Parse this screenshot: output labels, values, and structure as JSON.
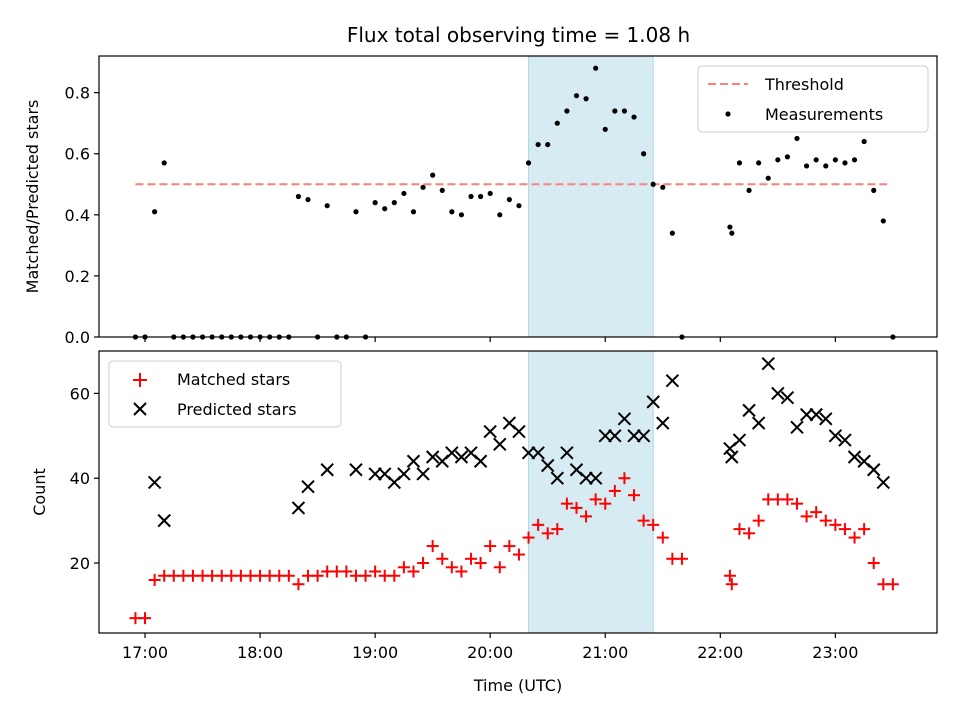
{
  "chart_data": [
    {
      "type": "scatter",
      "title": "Flux total observing time = 1.08 h",
      "xlabel": "",
      "ylabel": "Matched/Predicted stars",
      "ylim": [
        0.0,
        0.92
      ],
      "yticks": [
        "0.0",
        "0.2",
        "0.4",
        "0.6",
        "0.8"
      ],
      "xlim": [
        "16:36",
        "23:53"
      ],
      "highlight": {
        "from": "20:20",
        "to": "21:25",
        "color": "#add8e6"
      },
      "legend": {
        "position": "top-right"
      },
      "threshold": {
        "name": "Threshold",
        "value": 0.5,
        "x_from": "16:55",
        "x_to": "23:27",
        "color": "#ff7f7f"
      },
      "series": [
        {
          "name": "Measurements",
          "color": "#000000",
          "marker": "dot",
          "points": [
            [
              "16:55",
              0.0
            ],
            [
              "17:00",
              0.0
            ],
            [
              "17:05",
              0.41
            ],
            [
              "17:10",
              0.57
            ],
            [
              "17:15",
              0.0
            ],
            [
              "17:20",
              0.0
            ],
            [
              "17:25",
              0.0
            ],
            [
              "17:30",
              0.0
            ],
            [
              "17:35",
              0.0
            ],
            [
              "17:40",
              0.0
            ],
            [
              "17:45",
              0.0
            ],
            [
              "17:50",
              0.0
            ],
            [
              "17:55",
              0.0
            ],
            [
              "18:00",
              0.0
            ],
            [
              "18:05",
              0.0
            ],
            [
              "18:10",
              0.0
            ],
            [
              "18:15",
              0.0
            ],
            [
              "18:20",
              0.46
            ],
            [
              "18:25",
              0.45
            ],
            [
              "18:30",
              0.0
            ],
            [
              "18:35",
              0.43
            ],
            [
              "18:40",
              0.0
            ],
            [
              "18:45",
              0.0
            ],
            [
              "18:50",
              0.41
            ],
            [
              "18:55",
              0.0
            ],
            [
              "19:00",
              0.44
            ],
            [
              "19:05",
              0.42
            ],
            [
              "19:10",
              0.44
            ],
            [
              "19:15",
              0.47
            ],
            [
              "19:20",
              0.41
            ],
            [
              "19:25",
              0.49
            ],
            [
              "19:30",
              0.53
            ],
            [
              "19:35",
              0.48
            ],
            [
              "19:40",
              0.41
            ],
            [
              "19:45",
              0.4
            ],
            [
              "19:50",
              0.46
            ],
            [
              "19:55",
              0.46
            ],
            [
              "20:00",
              0.47
            ],
            [
              "20:05",
              0.4
            ],
            [
              "20:10",
              0.45
            ],
            [
              "20:15",
              0.43
            ],
            [
              "20:20",
              0.57
            ],
            [
              "20:25",
              0.63
            ],
            [
              "20:30",
              0.63
            ],
            [
              "20:35",
              0.7
            ],
            [
              "20:40",
              0.74
            ],
            [
              "20:45",
              0.79
            ],
            [
              "20:50",
              0.78
            ],
            [
              "20:55",
              0.88
            ],
            [
              "21:00",
              0.68
            ],
            [
              "21:05",
              0.74
            ],
            [
              "21:10",
              0.74
            ],
            [
              "21:15",
              0.72
            ],
            [
              "21:20",
              0.6
            ],
            [
              "21:25",
              0.5
            ],
            [
              "21:30",
              0.49
            ],
            [
              "21:35",
              0.34
            ],
            [
              "21:40",
              0.0
            ],
            [
              "22:05",
              0.36
            ],
            [
              "22:06",
              0.34
            ],
            [
              "22:10",
              0.57
            ],
            [
              "22:15",
              0.48
            ],
            [
              "22:20",
              0.57
            ],
            [
              "22:25",
              0.52
            ],
            [
              "22:30",
              0.58
            ],
            [
              "22:35",
              0.59
            ],
            [
              "22:40",
              0.65
            ],
            [
              "22:45",
              0.56
            ],
            [
              "22:50",
              0.58
            ],
            [
              "22:55",
              0.56
            ],
            [
              "23:00",
              0.58
            ],
            [
              "23:05",
              0.57
            ],
            [
              "23:10",
              0.58
            ],
            [
              "23:15",
              0.64
            ],
            [
              "23:20",
              0.48
            ],
            [
              "23:25",
              0.38
            ],
            [
              "23:30",
              0.0
            ]
          ]
        }
      ]
    },
    {
      "type": "scatter",
      "title": "",
      "xlabel": "Time (UTC)",
      "ylabel": "Count",
      "ylim": [
        3.5,
        70
      ],
      "yticks": [
        "20",
        "40",
        "60"
      ],
      "xticks": [
        "17:00",
        "18:00",
        "19:00",
        "20:00",
        "21:00",
        "22:00",
        "23:00"
      ],
      "xlim": [
        "16:36",
        "23:53"
      ],
      "highlight": {
        "from": "20:20",
        "to": "21:25",
        "color": "#add8e6"
      },
      "legend": {
        "position": "top-left"
      },
      "series": [
        {
          "name": "Matched stars",
          "color": "#ff0000",
          "marker": "plus",
          "points": [
            [
              "16:55",
              7
            ],
            [
              "17:00",
              7
            ],
            [
              "17:05",
              16
            ],
            [
              "17:10",
              17
            ],
            [
              "17:15",
              17
            ],
            [
              "17:20",
              17
            ],
            [
              "17:25",
              17
            ],
            [
              "17:30",
              17
            ],
            [
              "17:35",
              17
            ],
            [
              "17:40",
              17
            ],
            [
              "17:45",
              17
            ],
            [
              "17:50",
              17
            ],
            [
              "17:55",
              17
            ],
            [
              "18:00",
              17
            ],
            [
              "18:05",
              17
            ],
            [
              "18:10",
              17
            ],
            [
              "18:15",
              17
            ],
            [
              "18:20",
              15
            ],
            [
              "18:25",
              17
            ],
            [
              "18:30",
              17
            ],
            [
              "18:35",
              18
            ],
            [
              "18:40",
              18
            ],
            [
              "18:45",
              18
            ],
            [
              "18:50",
              17
            ],
            [
              "18:55",
              17
            ],
            [
              "19:00",
              18
            ],
            [
              "19:05",
              17
            ],
            [
              "19:10",
              17
            ],
            [
              "19:15",
              19
            ],
            [
              "19:20",
              18
            ],
            [
              "19:25",
              20
            ],
            [
              "19:30",
              24
            ],
            [
              "19:35",
              21
            ],
            [
              "19:40",
              19
            ],
            [
              "19:45",
              18
            ],
            [
              "19:50",
              21
            ],
            [
              "19:55",
              20
            ],
            [
              "20:00",
              24
            ],
            [
              "20:05",
              19
            ],
            [
              "20:10",
              24
            ],
            [
              "20:15",
              22
            ],
            [
              "20:20",
              26
            ],
            [
              "20:25",
              29
            ],
            [
              "20:30",
              27
            ],
            [
              "20:35",
              28
            ],
            [
              "20:40",
              34
            ],
            [
              "20:45",
              33
            ],
            [
              "20:50",
              31
            ],
            [
              "20:55",
              35
            ],
            [
              "21:00",
              34
            ],
            [
              "21:05",
              37
            ],
            [
              "21:10",
              40
            ],
            [
              "21:15",
              36
            ],
            [
              "21:20",
              30
            ],
            [
              "21:25",
              29
            ],
            [
              "21:30",
              26
            ],
            [
              "21:35",
              21
            ],
            [
              "21:40",
              21
            ],
            [
              "22:05",
              17
            ],
            [
              "22:06",
              15
            ],
            [
              "22:10",
              28
            ],
            [
              "22:15",
              27
            ],
            [
              "22:20",
              30
            ],
            [
              "22:25",
              35
            ],
            [
              "22:30",
              35
            ],
            [
              "22:35",
              35
            ],
            [
              "22:40",
              34
            ],
            [
              "22:45",
              31
            ],
            [
              "22:50",
              32
            ],
            [
              "22:55",
              30
            ],
            [
              "23:00",
              29
            ],
            [
              "23:05",
              28
            ],
            [
              "23:10",
              26
            ],
            [
              "23:15",
              28
            ],
            [
              "23:20",
              20
            ],
            [
              "23:25",
              15
            ],
            [
              "23:30",
              15
            ]
          ]
        },
        {
          "name": "Predicted stars",
          "color": "#000000",
          "marker": "x",
          "points": [
            [
              "17:05",
              39
            ],
            [
              "17:10",
              30
            ],
            [
              "18:20",
              33
            ],
            [
              "18:25",
              38
            ],
            [
              "18:35",
              42
            ],
            [
              "18:50",
              42
            ],
            [
              "19:00",
              41
            ],
            [
              "19:05",
              41
            ],
            [
              "19:10",
              39
            ],
            [
              "19:15",
              41
            ],
            [
              "19:20",
              44
            ],
            [
              "19:25",
              41
            ],
            [
              "19:30",
              45
            ],
            [
              "19:35",
              44
            ],
            [
              "19:40",
              46
            ],
            [
              "19:45",
              45
            ],
            [
              "19:50",
              46
            ],
            [
              "19:55",
              44
            ],
            [
              "20:00",
              51
            ],
            [
              "20:05",
              48
            ],
            [
              "20:10",
              53
            ],
            [
              "20:15",
              51
            ],
            [
              "20:20",
              46
            ],
            [
              "20:25",
              46
            ],
            [
              "20:30",
              43
            ],
            [
              "20:35",
              40
            ],
            [
              "20:40",
              46
            ],
            [
              "20:45",
              42
            ],
            [
              "20:50",
              40
            ],
            [
              "20:55",
              40
            ],
            [
              "21:00",
              50
            ],
            [
              "21:05",
              50
            ],
            [
              "21:10",
              54
            ],
            [
              "21:15",
              50
            ],
            [
              "21:20",
              50
            ],
            [
              "21:25",
              58
            ],
            [
              "21:30",
              53
            ],
            [
              "21:35",
              63
            ],
            [
              "22:05",
              47
            ],
            [
              "22:06",
              45
            ],
            [
              "22:10",
              49
            ],
            [
              "22:15",
              56
            ],
            [
              "22:20",
              53
            ],
            [
              "22:25",
              67
            ],
            [
              "22:30",
              60
            ],
            [
              "22:35",
              59
            ],
            [
              "22:40",
              52
            ],
            [
              "22:45",
              55
            ],
            [
              "22:50",
              55
            ],
            [
              "22:55",
              54
            ],
            [
              "23:00",
              50
            ],
            [
              "23:05",
              49
            ],
            [
              "23:10",
              45
            ],
            [
              "23:15",
              44
            ],
            [
              "23:20",
              42
            ],
            [
              "23:25",
              39
            ]
          ]
        }
      ]
    }
  ]
}
